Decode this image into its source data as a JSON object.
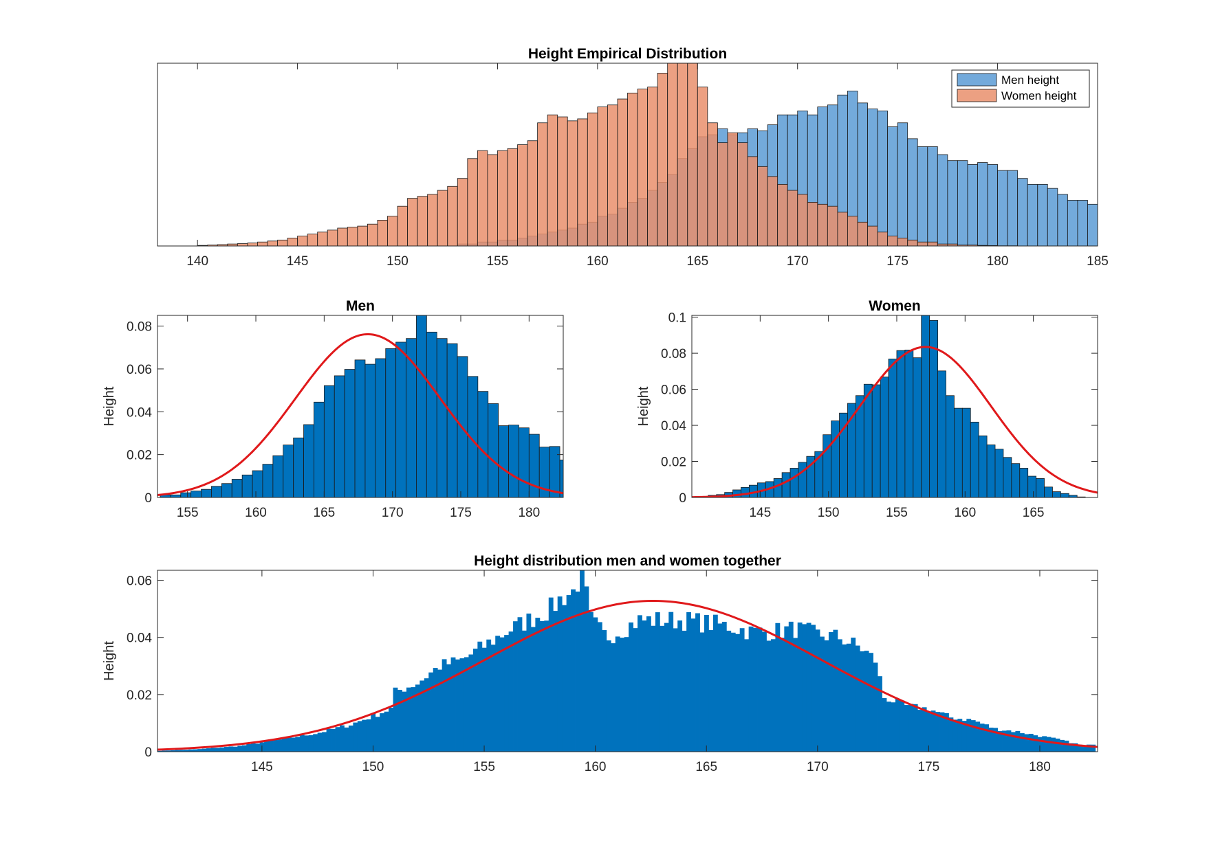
{
  "colors": {
    "men_face": "#5B9BD5",
    "women_face": "#E98F6C",
    "hist_face": "#0072BD",
    "edge": "#1a1a1a",
    "fit_line": "#E0191B"
  },
  "chart_data": [
    {
      "id": "empirical",
      "type": "bar",
      "title": "Height Empirical Distribution",
      "xlabel": "",
      "ylabel": "",
      "xlim": [
        138,
        185
      ],
      "ylim": [
        0,
        0.092
      ],
      "xticks": [
        140,
        145,
        150,
        155,
        160,
        165,
        170,
        175,
        180,
        185
      ],
      "yticks": [],
      "legend_position": "top-right",
      "bin_width": 0.5,
      "series": [
        {
          "name": "Men height",
          "color": "#5B9BD5",
          "bin_start": 153.0,
          "values": [
            0.001,
            0.001,
            0.002,
            0.002,
            0.003,
            0.003,
            0.004,
            0.005,
            0.006,
            0.007,
            0.008,
            0.009,
            0.011,
            0.012,
            0.015,
            0.016,
            0.019,
            0.022,
            0.024,
            0.028,
            0.032,
            0.036,
            0.044,
            0.049,
            0.055,
            0.056,
            0.059,
            0.056,
            0.057,
            0.059,
            0.058,
            0.061,
            0.066,
            0.066,
            0.068,
            0.066,
            0.07,
            0.071,
            0.076,
            0.078,
            0.072,
            0.069,
            0.068,
            0.06,
            0.062,
            0.054,
            0.05,
            0.05,
            0.046,
            0.043,
            0.043,
            0.041,
            0.042,
            0.041,
            0.038,
            0.038,
            0.034,
            0.031,
            0.031,
            0.029,
            0.026,
            0.023,
            0.023,
            0.021,
            0.021,
            0.017,
            0.016,
            0.014,
            0.012,
            0.011,
            0.01,
            0.009,
            0.009,
            0.007,
            0.006,
            0.005,
            0.005,
            0.004,
            0.003,
            0.002,
            0.001,
            0.001,
            0.001,
            0.0,
            0.0,
            0.001,
            0.001,
            0.0,
            0.0,
            0.0,
            0.0,
            0.0,
            0.0,
            0.0,
            0.0,
            0.0,
            0.0,
            0.0,
            0.0,
            0.0,
            0.0,
            0.0,
            0.0,
            0.0,
            0.0,
            0.0,
            0.0,
            0.0,
            0.0,
            0.0,
            0.0,
            0.0,
            0.0,
            0.0,
            0.0,
            0.0,
            0.0,
            0.0,
            0.0,
            0.0,
            0.0,
            0.0,
            0.0,
            0.0,
            0.0,
            0.0,
            0.0,
            0.0,
            0.0,
            0.0,
            0.0,
            0.0,
            0.0,
            0.0,
            0.0,
            0.0,
            0.0,
            0.0,
            0.0,
            0.0,
            0.0,
            0.0,
            0.0,
            0.0,
            0.0,
            0.0,
            0.0,
            0.0,
            0.0,
            0.0,
            0.0,
            0.0,
            0.0,
            0.0,
            0.0,
            0.0,
            0.0,
            0.0,
            0.0,
            0.0,
            0.0,
            0.0,
            0.0,
            0.0,
            0.0,
            0.0,
            0.0,
            0.0,
            0.0,
            0.0,
            0.0,
            0.0,
            0.0,
            0.0,
            0.0,
            0.0,
            0.0,
            0.0,
            0.0,
            0.0,
            0.0,
            0.0,
            0.0,
            0.0,
            0.0,
            0.0,
            0.0,
            0.0,
            0.0,
            0.0,
            0.0,
            0.0,
            0.0,
            0.0,
            0.0,
            0.0,
            0.0,
            0.0,
            0.0
          ]
        },
        {
          "name": "Women height",
          "color": "#E98F6C",
          "bin_start": 140.0,
          "values": [
            0.0003,
            0.0005,
            0.0007,
            0.001,
            0.0012,
            0.0015,
            0.002,
            0.0025,
            0.003,
            0.004,
            0.005,
            0.006,
            0.007,
            0.008,
            0.009,
            0.0095,
            0.01,
            0.011,
            0.013,
            0.015,
            0.02,
            0.024,
            0.025,
            0.026,
            0.028,
            0.03,
            0.034,
            0.044,
            0.048,
            0.046,
            0.048,
            0.049,
            0.051,
            0.053,
            0.062,
            0.066,
            0.065,
            0.063,
            0.064,
            0.067,
            0.07,
            0.071,
            0.074,
            0.077,
            0.079,
            0.08,
            0.087,
            0.095,
            0.094,
            0.1,
            0.08,
            0.062,
            0.052,
            0.057,
            0.052,
            0.045,
            0.04,
            0.035,
            0.031,
            0.028,
            0.026,
            0.022,
            0.021,
            0.02,
            0.017,
            0.015,
            0.012,
            0.01,
            0.007,
            0.005,
            0.004,
            0.003,
            0.002,
            0.002,
            0.001,
            0.001,
            0.0005,
            0.0005,
            0.0003,
            0.0002,
            0.0001,
            0.0001
          ]
        }
      ]
    },
    {
      "id": "men",
      "type": "bar",
      "title": "Men",
      "xlabel": "",
      "ylabel": "Height",
      "xlim": [
        152.8,
        182.5
      ],
      "ylim": [
        0,
        0.085
      ],
      "xticks": [
        155,
        160,
        165,
        170,
        175,
        180
      ],
      "yticks": [
        0,
        0.02,
        0.04,
        0.06,
        0.08
      ],
      "bin_start": 153.0,
      "bin_width": 0.75,
      "values": [
        0.0012,
        0.0012,
        0.0022,
        0.003,
        0.0038,
        0.0052,
        0.0065,
        0.0085,
        0.0105,
        0.0125,
        0.0155,
        0.0195,
        0.0245,
        0.0278,
        0.034,
        0.0445,
        0.0522,
        0.0568,
        0.0598,
        0.0642,
        0.0622,
        0.0648,
        0.0695,
        0.0725,
        0.0742,
        0.0852,
        0.0772,
        0.0742,
        0.0718,
        0.0658,
        0.0565,
        0.0495,
        0.0438,
        0.0335,
        0.0338,
        0.0325,
        0.0295,
        0.0235,
        0.0238,
        0.0175,
        0.0148,
        0.0132,
        0.0135,
        0.0062,
        0.0045,
        0.0025
      ],
      "fit": {
        "mean": 168.2,
        "std": 5.3,
        "peak": 0.0762
      }
    },
    {
      "id": "women",
      "type": "bar",
      "title": "Women",
      "xlabel": "",
      "ylabel": "Height",
      "xlim": [
        140.0,
        169.7
      ],
      "ylim": [
        0,
        0.101
      ],
      "xticks": [
        145,
        150,
        155,
        160,
        165
      ],
      "yticks": [
        0,
        0.02,
        0.04,
        0.06,
        0.08,
        0.1
      ],
      "bin_start": 140.0,
      "bin_width": 0.6,
      "values": [
        0.0002,
        0.0006,
        0.0012,
        0.0016,
        0.0028,
        0.0042,
        0.0056,
        0.0068,
        0.0081,
        0.0088,
        0.0105,
        0.0138,
        0.0162,
        0.0195,
        0.0228,
        0.0255,
        0.0348,
        0.0425,
        0.0468,
        0.0522,
        0.0565,
        0.0628,
        0.0625,
        0.0668,
        0.0768,
        0.0815,
        0.0818,
        0.0775,
        0.1012,
        0.0982,
        0.0702,
        0.0565,
        0.0495,
        0.0495,
        0.0418,
        0.0342,
        0.0292,
        0.0268,
        0.0222,
        0.0188,
        0.0162,
        0.0118,
        0.0105,
        0.0058,
        0.0032,
        0.0022,
        0.0012,
        0.0003
      ],
      "fit": {
        "mean": 157.1,
        "std": 4.8,
        "peak": 0.0835
      }
    },
    {
      "id": "together",
      "type": "bar",
      "title": "Height distribution men and women together",
      "xlabel": "",
      "ylabel": "Height",
      "xlim": [
        140.3,
        182.6
      ],
      "ylim": [
        0,
        0.0635
      ],
      "xticks": [
        145,
        150,
        155,
        160,
        165,
        170,
        175,
        180
      ],
      "yticks": [
        0,
        0.02,
        0.04,
        0.06
      ],
      "bin_start": 140.3,
      "bin_width": 0.2,
      "anchors": [
        [
          140.3,
          0.0003
        ],
        [
          142,
          0.0008
        ],
        [
          144,
          0.002
        ],
        [
          146,
          0.0045
        ],
        [
          147.5,
          0.0065
        ],
        [
          149,
          0.0095
        ],
        [
          150,
          0.0125
        ],
        [
          150.8,
          0.015
        ],
        [
          151,
          0.021
        ],
        [
          152,
          0.024
        ],
        [
          153,
          0.03
        ],
        [
          154,
          0.032
        ],
        [
          155,
          0.037
        ],
        [
          156,
          0.042
        ],
        [
          157,
          0.046
        ],
        [
          158,
          0.05
        ],
        [
          158.5,
          0.054
        ],
        [
          159,
          0.056
        ],
        [
          159.4,
          0.063
        ],
        [
          159.8,
          0.046
        ],
        [
          160.5,
          0.04
        ],
        [
          161,
          0.042
        ],
        [
          162,
          0.046
        ],
        [
          163,
          0.046
        ],
        [
          164,
          0.046
        ],
        [
          165,
          0.045
        ],
        [
          166,
          0.044
        ],
        [
          167,
          0.042
        ],
        [
          168,
          0.042
        ],
        [
          169,
          0.043
        ],
        [
          170,
          0.041
        ],
        [
          171,
          0.04
        ],
        [
          172,
          0.036
        ],
        [
          172.6,
          0.032
        ],
        [
          173,
          0.019
        ],
        [
          174,
          0.016
        ],
        [
          175,
          0.015
        ],
        [
          176,
          0.012
        ],
        [
          177,
          0.011
        ],
        [
          178,
          0.008
        ],
        [
          179,
          0.007
        ],
        [
          180,
          0.0055
        ],
        [
          181,
          0.004
        ],
        [
          182,
          0.002
        ],
        [
          182.6,
          0.003
        ]
      ],
      "fit": {
        "mean": 162.6,
        "std": 7.6,
        "peak": 0.0528
      }
    }
  ],
  "legend": {
    "men_label": "Men height",
    "women_label": "Women height"
  }
}
